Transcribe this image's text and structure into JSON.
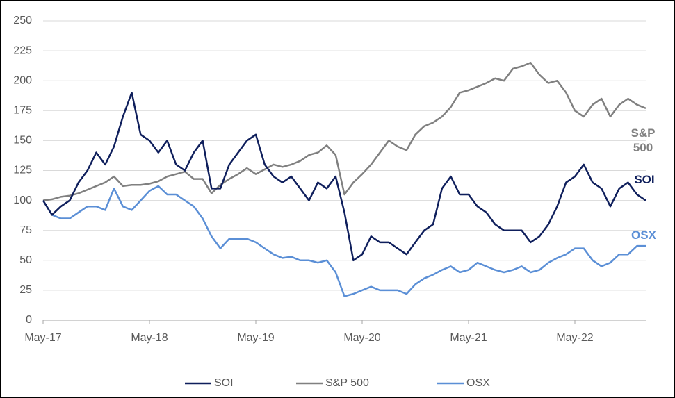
{
  "chart_data": {
    "type": "line",
    "categories": [
      "May-17",
      null,
      null,
      null,
      null,
      null,
      null,
      null,
      null,
      null,
      null,
      null,
      "May-18",
      null,
      null,
      null,
      null,
      null,
      null,
      null,
      null,
      null,
      null,
      null,
      "May-19",
      null,
      null,
      null,
      null,
      null,
      null,
      null,
      null,
      null,
      null,
      null,
      "May-20",
      null,
      null,
      null,
      null,
      null,
      null,
      null,
      null,
      null,
      null,
      null,
      "May-21",
      null,
      null,
      null,
      null,
      null,
      null,
      null,
      null,
      null,
      null,
      null,
      "May-22",
      null,
      null,
      null,
      null,
      null,
      null,
      null,
      null
    ],
    "series": [
      {
        "name": "SOI",
        "color": "#0f1f5c",
        "values": [
          100,
          88,
          95,
          100,
          115,
          125,
          140,
          130,
          145,
          170,
          190,
          155,
          150,
          140,
          150,
          130,
          125,
          140,
          150,
          110,
          110,
          130,
          140,
          150,
          155,
          130,
          120,
          115,
          120,
          110,
          100,
          115,
          110,
          120,
          90,
          50,
          55,
          70,
          65,
          65,
          60,
          55,
          65,
          75,
          80,
          110,
          120,
          105,
          105,
          95,
          90,
          80,
          75,
          75,
          75,
          65,
          70,
          80,
          95,
          115,
          120,
          130,
          115,
          110,
          95,
          110,
          115,
          105,
          100
        ]
      },
      {
        "name": "S&P 500",
        "color": "#808080",
        "values": [
          100,
          101,
          103,
          104,
          106,
          109,
          112,
          115,
          120,
          112,
          113,
          113,
          114,
          116,
          120,
          122,
          124,
          118,
          118,
          106,
          113,
          118,
          122,
          127,
          122,
          126,
          130,
          128,
          130,
          133,
          138,
          140,
          146,
          138,
          105,
          115,
          122,
          130,
          140,
          150,
          145,
          142,
          155,
          162,
          165,
          170,
          178,
          190,
          192,
          195,
          198,
          202,
          200,
          210,
          212,
          215,
          205,
          198,
          200,
          190,
          175,
          170,
          180,
          185,
          170,
          180,
          185,
          180,
          177
        ]
      },
      {
        "name": "OSX",
        "color": "#5b8fd6",
        "values": [
          100,
          88,
          85,
          85,
          90,
          95,
          95,
          92,
          110,
          95,
          92,
          100,
          108,
          112,
          105,
          105,
          100,
          95,
          85,
          70,
          60,
          68,
          68,
          68,
          65,
          60,
          55,
          52,
          53,
          50,
          50,
          48,
          50,
          40,
          20,
          22,
          25,
          28,
          25,
          25,
          25,
          22,
          30,
          35,
          38,
          42,
          45,
          40,
          42,
          48,
          45,
          42,
          40,
          42,
          45,
          40,
          42,
          48,
          52,
          55,
          60,
          60,
          50,
          45,
          48,
          55,
          55,
          62,
          62
        ]
      }
    ],
    "annotations": [
      {
        "text": "S&P 500",
        "color": "#808080"
      },
      {
        "text": "SOI",
        "color": "#0f1f5c"
      },
      {
        "text": "OSX",
        "color": "#5b8fd6"
      }
    ],
    "ylim": [
      0,
      250
    ],
    "yticks": [
      0,
      25,
      50,
      75,
      100,
      125,
      150,
      175,
      200,
      225,
      250
    ],
    "grid": true,
    "legend": "bottom"
  }
}
